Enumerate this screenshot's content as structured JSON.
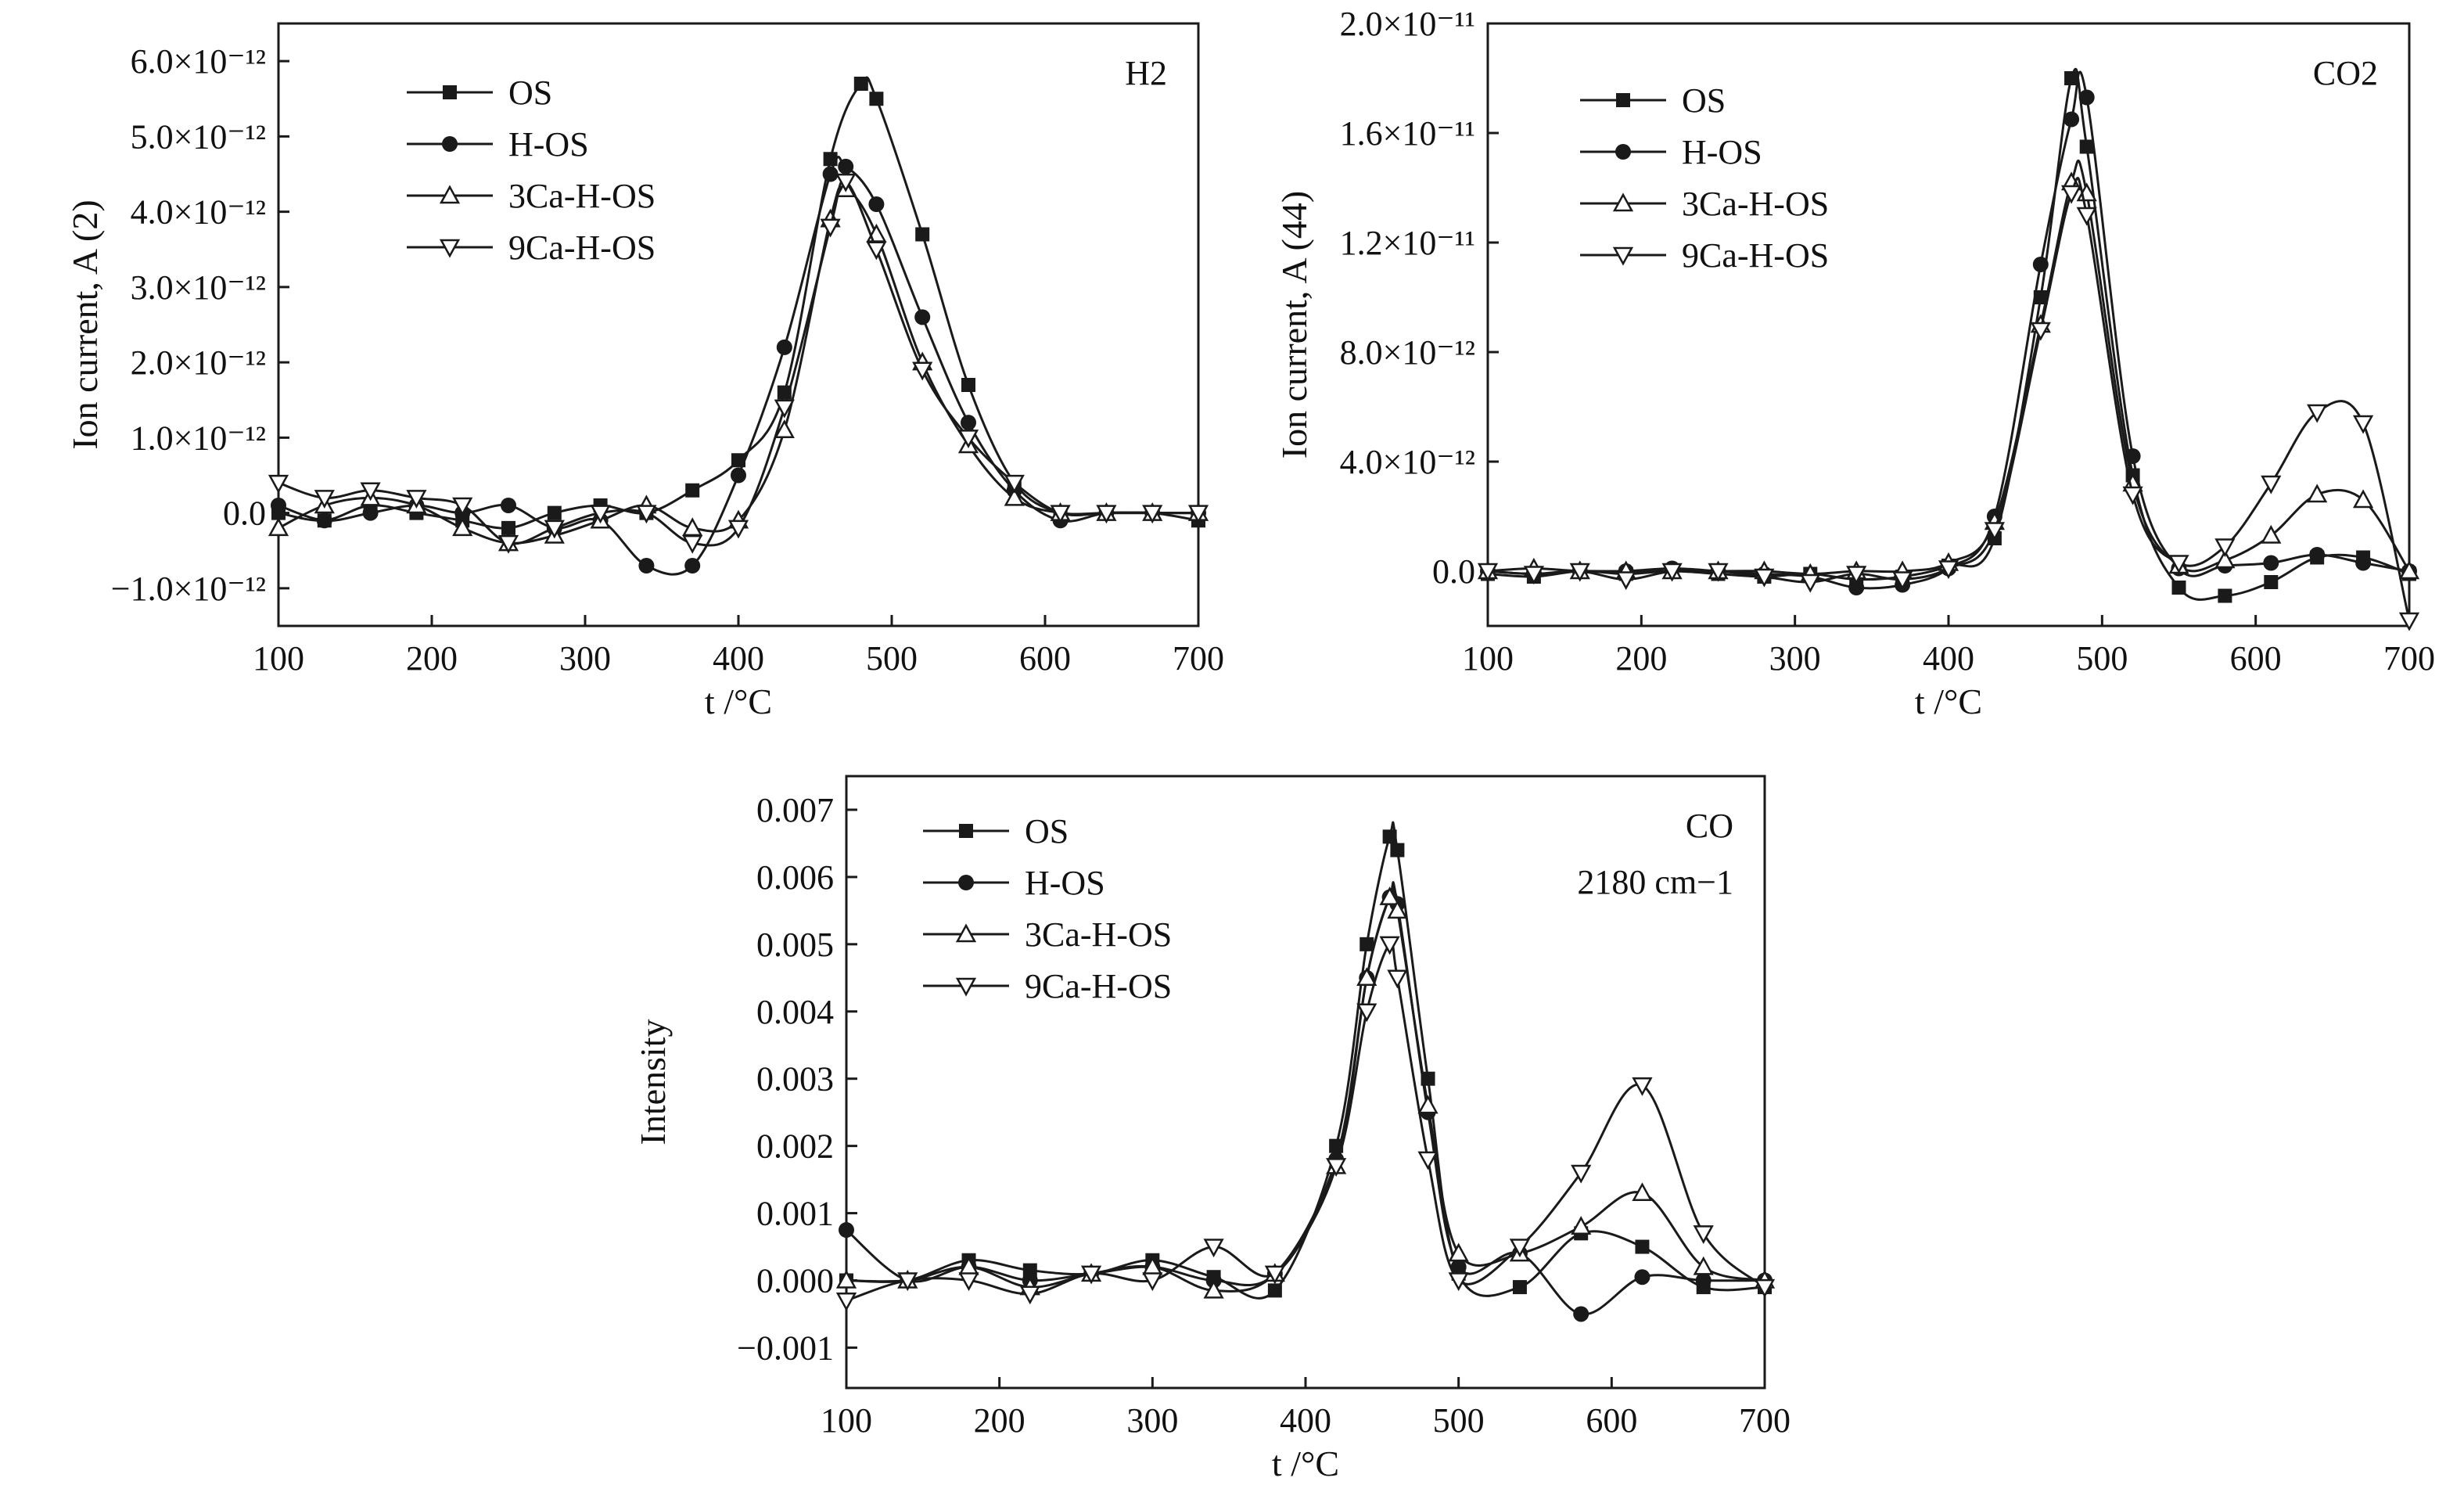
{
  "chart_data": [
    {
      "type": "line",
      "panel_label": "H2",
      "xlabel": "t /°C",
      "ylabel": "Ion current, A (2)",
      "xlim": [
        100,
        700
      ],
      "ylim": [
        -1.5e-12,
        6.5e-12
      ],
      "xticks": [
        100,
        200,
        300,
        400,
        500,
        600,
        700
      ],
      "xtick_labels": [
        "100",
        "200",
        "300",
        "400",
        "500",
        "600",
        "700"
      ],
      "yticks": [
        -1e-12,
        0,
        1e-12,
        2e-12,
        3e-12,
        4e-12,
        5e-12,
        6e-12
      ],
      "ytick_labels": [
        "−1.0×10⁻¹²",
        "0.0",
        "1.0×10⁻¹²",
        "2.0×10⁻¹²",
        "3.0×10⁻¹²",
        "4.0×10⁻¹²",
        "5.0×10⁻¹²",
        "6.0×10⁻¹²"
      ],
      "legend_position": "top-left",
      "series": [
        {
          "name": "OS",
          "marker": "square",
          "x": [
            100,
            130,
            160,
            190,
            220,
            250,
            280,
            310,
            340,
            370,
            400,
            430,
            460,
            480,
            490,
            520,
            550,
            580,
            610,
            640,
            670,
            700
          ],
          "y": [
            0.0,
            -1e-13,
            1e-13,
            0.0,
            -1e-13,
            -2e-13,
            0.0,
            1e-13,
            0.0,
            3e-13,
            7e-13,
            1.6e-12,
            4.7e-12,
            5.7e-12,
            5.5e-12,
            3.7e-12,
            1.7e-12,
            4e-13,
            0.0,
            0.0,
            0.0,
            -1e-13
          ]
        },
        {
          "name": "H-OS",
          "marker": "circle",
          "x": [
            100,
            130,
            160,
            190,
            220,
            250,
            280,
            310,
            340,
            370,
            400,
            430,
            460,
            470,
            490,
            520,
            550,
            580,
            610,
            640,
            670,
            700
          ],
          "y": [
            1e-13,
            -1e-13,
            0.0,
            1e-13,
            0.0,
            1e-13,
            -2e-13,
            -1e-13,
            -7e-13,
            -7e-13,
            5e-13,
            2.2e-12,
            4.5e-12,
            4.6e-12,
            4.1e-12,
            2.6e-12,
            1.2e-12,
            3e-13,
            -1e-13,
            0.0,
            0.0,
            0.0
          ]
        },
        {
          "name": "3Ca-H-OS",
          "marker": "triangle-up",
          "x": [
            100,
            130,
            160,
            190,
            220,
            250,
            280,
            310,
            340,
            370,
            400,
            430,
            460,
            470,
            490,
            520,
            550,
            580,
            610,
            640,
            670,
            700
          ],
          "y": [
            -2e-13,
            1e-13,
            2e-13,
            1e-13,
            -2e-13,
            -4e-13,
            -3e-13,
            -1e-13,
            1e-13,
            -2e-13,
            -1e-13,
            1.1e-12,
            3.9e-12,
            4.3e-12,
            3.7e-12,
            2e-12,
            9e-13,
            2e-13,
            0.0,
            0.0,
            0.0,
            0.0
          ]
        },
        {
          "name": "9Ca-H-OS",
          "marker": "triangle-down",
          "x": [
            100,
            130,
            160,
            190,
            220,
            250,
            280,
            310,
            340,
            370,
            400,
            430,
            460,
            470,
            490,
            520,
            550,
            580,
            610,
            640,
            670,
            700
          ],
          "y": [
            4e-13,
            2e-13,
            3e-13,
            2e-13,
            1e-13,
            -4e-13,
            -2e-13,
            0.0,
            0.0,
            -4e-13,
            -2e-13,
            1.4e-12,
            3.8e-12,
            4.4e-12,
            3.5e-12,
            1.9e-12,
            1e-12,
            4e-13,
            0.0,
            0.0,
            0.0,
            0.0
          ]
        }
      ]
    },
    {
      "type": "line",
      "panel_label": "CO2",
      "xlabel": "t /°C",
      "ylabel": "Ion current, A (44)",
      "xlim": [
        100,
        700
      ],
      "ylim": [
        -2e-12,
        2e-11
      ],
      "xticks": [
        100,
        200,
        300,
        400,
        500,
        600,
        700
      ],
      "xtick_labels": [
        "100",
        "200",
        "300",
        "400",
        "500",
        "600",
        "700"
      ],
      "yticks": [
        0,
        4e-12,
        8e-12,
        1.2e-11,
        1.6e-11,
        2e-11
      ],
      "ytick_labels": [
        "0.0",
        "4.0×10⁻¹²",
        "8.0×10⁻¹²",
        "1.2×10⁻¹¹",
        "1.6×10⁻¹¹",
        "2.0×10⁻¹¹"
      ],
      "legend_position": "top-left",
      "series": [
        {
          "name": "OS",
          "marker": "square",
          "x": [
            100,
            130,
            160,
            190,
            220,
            250,
            280,
            310,
            340,
            370,
            400,
            430,
            460,
            480,
            490,
            520,
            550,
            580,
            610,
            640,
            670,
            700
          ],
          "y": [
            -1e-13,
            -2e-13,
            0.0,
            -1e-13,
            0.0,
            -1e-13,
            -2e-13,
            -1e-13,
            -3e-13,
            -2e-13,
            2e-13,
            1.2e-12,
            1e-11,
            1.8e-11,
            1.55e-11,
            3.5e-12,
            -6e-13,
            -9e-13,
            -4e-13,
            5e-13,
            5e-13,
            -1e-13
          ]
        },
        {
          "name": "H-OS",
          "marker": "circle",
          "x": [
            100,
            130,
            160,
            190,
            220,
            250,
            280,
            310,
            340,
            370,
            400,
            430,
            460,
            480,
            490,
            520,
            550,
            580,
            610,
            640,
            670,
            700
          ],
          "y": [
            0.0,
            -1e-13,
            0.0,
            0.0,
            1e-13,
            0.0,
            -1e-13,
            -2e-13,
            -6e-13,
            -5e-13,
            1e-13,
            2e-12,
            1.12e-11,
            1.65e-11,
            1.73e-11,
            4.2e-12,
            1e-13,
            2e-13,
            3e-13,
            6e-13,
            3e-13,
            0.0
          ]
        },
        {
          "name": "3Ca-H-OS",
          "marker": "triangle-up",
          "x": [
            100,
            130,
            160,
            190,
            220,
            250,
            280,
            310,
            340,
            370,
            400,
            430,
            460,
            480,
            490,
            520,
            550,
            580,
            610,
            640,
            670,
            700
          ],
          "y": [
            0.0,
            1e-13,
            0.0,
            0.0,
            0.0,
            0.0,
            0.0,
            -1e-13,
            0.0,
            0.0,
            3e-13,
            1.8e-12,
            9e-12,
            1.42e-11,
            1.38e-11,
            3.2e-12,
            2e-13,
            4e-13,
            1.3e-12,
            2.8e-12,
            2.6e-12,
            0.0
          ]
        },
        {
          "name": "9Ca-H-OS",
          "marker": "triangle-down",
          "x": [
            100,
            130,
            160,
            190,
            220,
            250,
            280,
            310,
            340,
            370,
            400,
            430,
            460,
            480,
            490,
            520,
            550,
            580,
            610,
            640,
            670,
            700
          ],
          "y": [
            0.0,
            -1e-13,
            0.0,
            -3e-13,
            0.0,
            0.0,
            -2e-13,
            -4e-13,
            -1e-13,
            -3e-13,
            1e-13,
            1.5e-12,
            8.8e-12,
            1.38e-11,
            1.3e-11,
            2.8e-12,
            3e-13,
            9e-13,
            3.2e-12,
            5.8e-12,
            5.4e-12,
            -1.8e-12
          ]
        }
      ]
    },
    {
      "type": "line",
      "panel_label": "CO",
      "panel_sublabel": "2180 cm−1",
      "xlabel": "t /°C",
      "ylabel": "Intensity",
      "xlim": [
        100,
        700
      ],
      "ylim": [
        -0.0016,
        0.0075
      ],
      "xticks": [
        100,
        200,
        300,
        400,
        500,
        600,
        700
      ],
      "xtick_labels": [
        "100",
        "200",
        "300",
        "400",
        "500",
        "600",
        "700"
      ],
      "yticks": [
        -0.001,
        0,
        0.001,
        0.002,
        0.003,
        0.004,
        0.005,
        0.006,
        0.007
      ],
      "ytick_labels": [
        "−0.001",
        "0.000",
        "0.001",
        "0.002",
        "0.003",
        "0.004",
        "0.005",
        "0.006",
        "0.007"
      ],
      "legend_position": "top-left",
      "series": [
        {
          "name": "OS",
          "marker": "square",
          "x": [
            100,
            140,
            180,
            220,
            260,
            300,
            340,
            380,
            420,
            440,
            455,
            460,
            480,
            500,
            540,
            580,
            620,
            660,
            700
          ],
          "y": [
            0.0,
            0.0,
            0.0003,
            0.00015,
            0.0001,
            0.0003,
            5e-05,
            -0.00015,
            0.002,
            0.005,
            0.0066,
            0.0064,
            0.003,
            0.0001,
            -0.0001,
            0.0007,
            0.0005,
            -0.0001,
            -0.0001
          ]
        },
        {
          "name": "H-OS",
          "marker": "circle",
          "x": [
            100,
            140,
            180,
            220,
            260,
            300,
            340,
            380,
            420,
            440,
            455,
            460,
            480,
            500,
            540,
            580,
            620,
            660,
            700
          ],
          "y": [
            0.00075,
            0.0,
            0.0002,
            0.0,
            0.0001,
            0.0002,
            0.0,
            0.0001,
            0.0018,
            0.0045,
            0.0057,
            0.0056,
            0.0025,
            0.0002,
            0.0004,
            -0.0005,
            5e-05,
            0.0,
            0.0
          ]
        },
        {
          "name": "3Ca-H-OS",
          "marker": "triangle-up",
          "x": [
            100,
            140,
            180,
            220,
            260,
            300,
            340,
            380,
            420,
            440,
            455,
            460,
            480,
            500,
            540,
            580,
            620,
            660,
            700
          ],
          "y": [
            0.0,
            0.0,
            0.0002,
            -0.0001,
            0.0001,
            0.0002,
            -0.00015,
            0.0001,
            0.0017,
            0.0045,
            0.0057,
            0.0055,
            0.0026,
            0.0004,
            0.0004,
            0.0008,
            0.0013,
            0.0002,
            0.0
          ]
        },
        {
          "name": "9Ca-H-OS",
          "marker": "triangle-down",
          "x": [
            100,
            140,
            180,
            220,
            260,
            300,
            340,
            380,
            420,
            440,
            455,
            460,
            480,
            500,
            540,
            580,
            620,
            660,
            700
          ],
          "y": [
            -0.0003,
            0.0,
            0.0,
            -0.0002,
            0.0001,
            0.0,
            0.0005,
            0.0001,
            0.0017,
            0.004,
            0.005,
            0.0045,
            0.0018,
            0.0,
            0.0005,
            0.0016,
            0.0029,
            0.0007,
            -0.0001
          ]
        }
      ]
    }
  ]
}
